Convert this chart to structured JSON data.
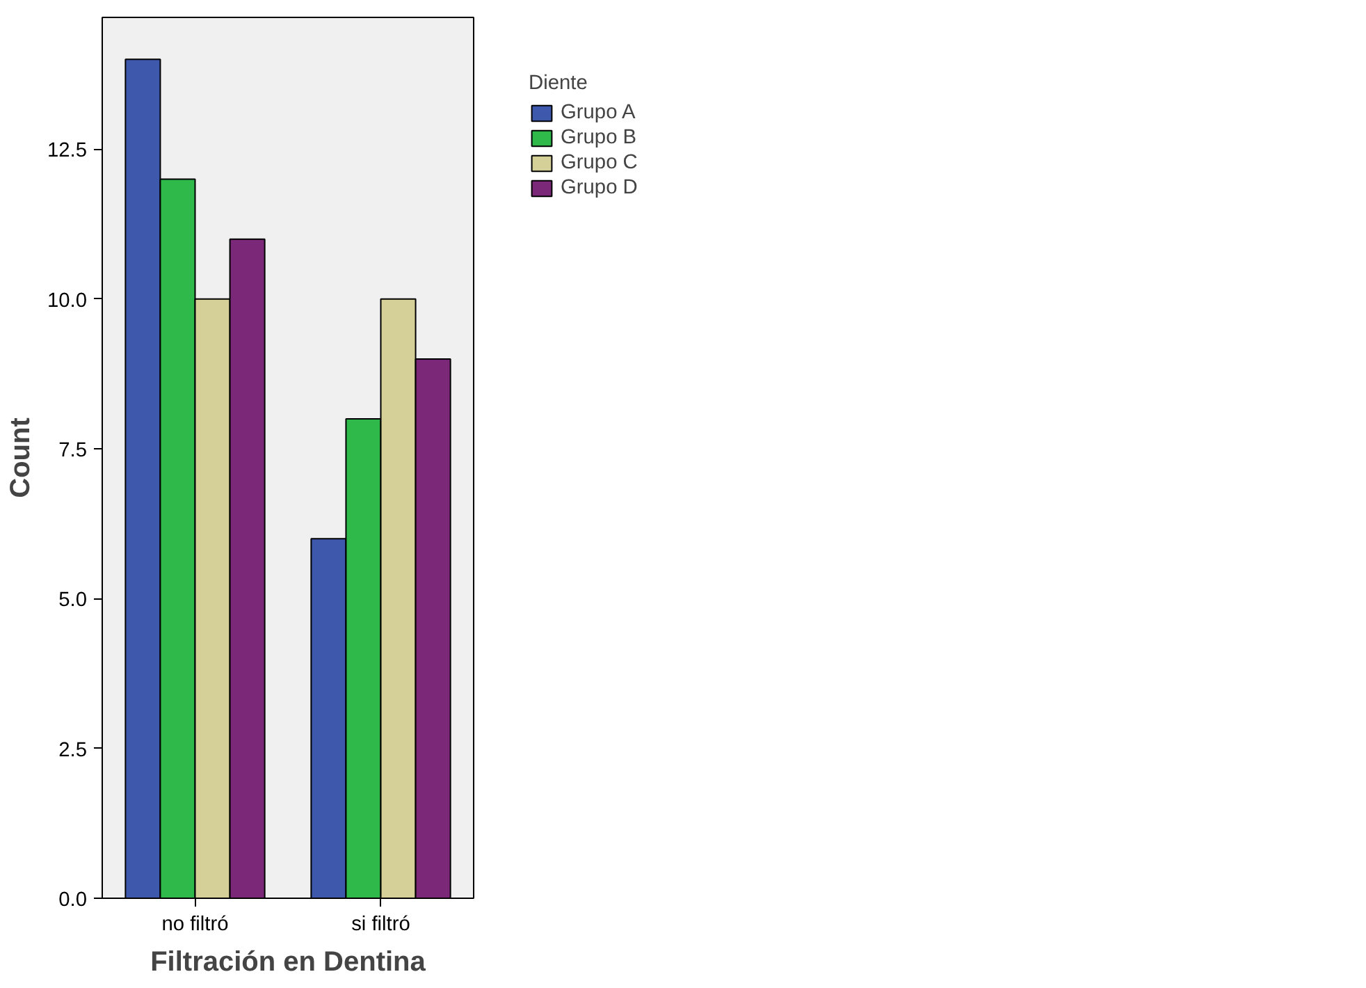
{
  "chart_data": {
    "type": "bar",
    "xlabel": "Filtración en Dentina",
    "ylabel": "Count",
    "legend_title": "Diente",
    "categories": [
      "no filtró",
      "si filtró"
    ],
    "series": [
      {
        "name": "Grupo A",
        "color": "#3e58ac",
        "values": [
          14,
          6
        ]
      },
      {
        "name": "Grupo B",
        "color": "#2eb94a",
        "values": [
          12,
          8
        ]
      },
      {
        "name": "Grupo C",
        "color": "#d5cf98",
        "values": [
          10,
          10
        ]
      },
      {
        "name": "Grupo D",
        "color": "#7c2878",
        "values": [
          11,
          9
        ]
      }
    ],
    "ylim": [
      0,
      14.7
    ],
    "yticks": [
      {
        "value": 0,
        "label": "0.0"
      },
      {
        "value": 2.5,
        "label": "2.5"
      },
      {
        "value": 5,
        "label": "5.0"
      },
      {
        "value": 7.5,
        "label": "7.5"
      },
      {
        "value": 10,
        "label": "10.0"
      },
      {
        "value": 12.5,
        "label": "12.5"
      }
    ],
    "grid": false,
    "legend": "top right"
  }
}
